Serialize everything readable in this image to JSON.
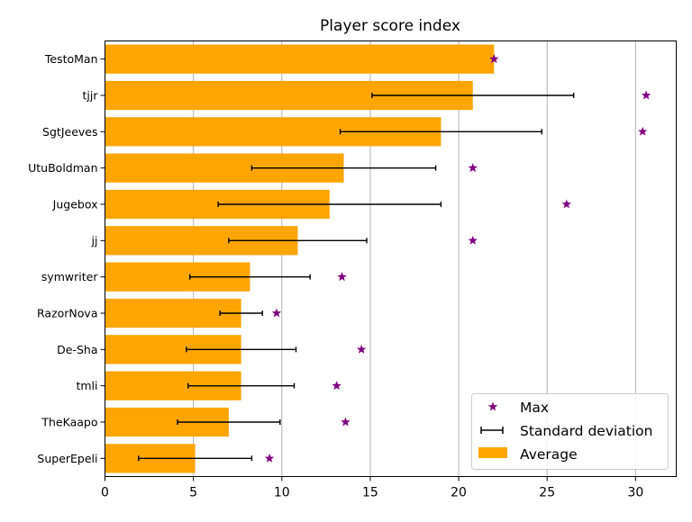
{
  "chart_data": {
    "type": "bar",
    "orientation": "horizontal",
    "title": "Player score index",
    "xlabel": "",
    "ylabel": "",
    "xlim": [
      0,
      32.3
    ],
    "x_ticks": [
      0,
      5,
      10,
      15,
      20,
      25,
      30
    ],
    "grid": "vertical",
    "legend_position": "lower-right",
    "categories": [
      "TestoMan",
      "tjjr",
      "SgtJeeves",
      "UtuBoldman",
      "Jugebox",
      "jj",
      "symwriter",
      "RazorNova",
      "De-Sha",
      "tmli",
      "TheKaapo",
      "SuperEpeli"
    ],
    "series": [
      {
        "name": "Average",
        "kind": "bar",
        "color": "#ffa500",
        "values": [
          22.0,
          20.8,
          19.0,
          13.5,
          12.7,
          10.9,
          8.2,
          7.7,
          7.7,
          7.7,
          7.0,
          5.1
        ]
      },
      {
        "name": "Standard deviation",
        "kind": "errorbar",
        "color": "#000000",
        "errors": [
          0.0,
          5.7,
          5.7,
          5.2,
          6.3,
          3.9,
          3.4,
          1.2,
          3.1,
          3.0,
          2.9,
          3.2
        ]
      },
      {
        "name": "Max",
        "kind": "marker",
        "marker": "star",
        "color": "#800080",
        "values": [
          22.0,
          30.6,
          30.4,
          20.8,
          26.1,
          20.8,
          13.4,
          9.7,
          14.5,
          13.1,
          13.6,
          9.3
        ]
      }
    ],
    "legend": [
      "Max",
      "Standard deviation",
      "Average"
    ]
  }
}
